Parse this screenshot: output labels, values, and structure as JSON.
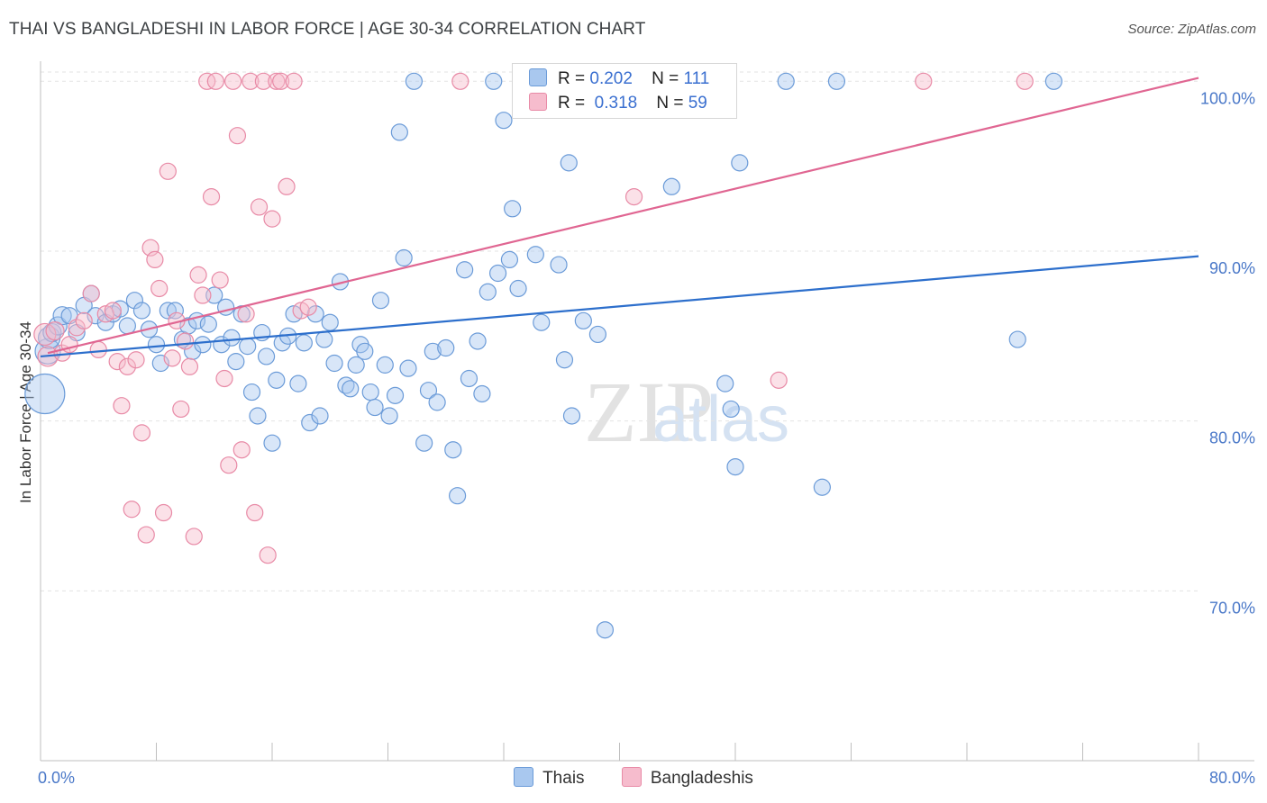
{
  "header": {
    "title": "THAI VS BANGLADESHI IN LABOR FORCE | AGE 30-34 CORRELATION CHART",
    "source": "Source: ZipAtlas.com"
  },
  "watermark": {
    "part1": "ZIP",
    "part2": "atlas"
  },
  "legend": {
    "r_label": "R =",
    "n_label": "N =",
    "rows": [
      {
        "r": "0.202",
        "n": "111",
        "color": "#a9c8ef",
        "stroke": "#6b9bd8"
      },
      {
        "r": "0.318",
        "n": "59",
        "color": "#f6bccd",
        "stroke": "#e88aa6"
      }
    ]
  },
  "chart_data": {
    "type": "scatter",
    "title": "THAI VS BANGLADESHI IN LABOR FORCE | AGE 30-34 CORRELATION CHART",
    "xlabel": "",
    "ylabel": "In Labor Force | Age 30-34",
    "xlim": [
      0,
      80
    ],
    "ylim": [
      60,
      101.5
    ],
    "x_ticks": [
      "0.0%",
      "80.0%"
    ],
    "y_ticks": [
      {
        "value": 70,
        "label": "70.0%"
      },
      {
        "value": 80,
        "label": "80.0%"
      },
      {
        "value": 90,
        "label": "90.0%"
      },
      {
        "value": 100,
        "label": "100.0%"
      }
    ],
    "grid": true,
    "legend_position": "bottom",
    "series": [
      {
        "name": "Thais",
        "color": "#6b9bd8",
        "fill": "#a9c8ef",
        "trend": {
          "x": [
            0,
            80
          ],
          "y": [
            83.8,
            89.7
          ],
          "color": "#2d6fcc"
        },
        "points": [
          [
            0.3,
            81.6,
            22
          ],
          [
            0.5,
            84.1,
            14
          ],
          [
            0.6,
            84.9,
            12
          ],
          [
            0.8,
            85.2,
            10
          ],
          [
            1.2,
            85.6,
            10
          ],
          [
            1.5,
            86.2,
            10
          ],
          [
            2.0,
            86.2,
            9
          ],
          [
            2.5,
            85.2,
            9
          ],
          [
            3.0,
            86.8,
            9
          ],
          [
            3.5,
            87.5,
            9
          ],
          [
            3.8,
            86.2,
            9
          ],
          [
            4.5,
            85.8,
            9
          ],
          [
            5.0,
            86.3,
            9
          ],
          [
            5.5,
            86.6,
            9
          ],
          [
            6.0,
            85.6,
            9
          ],
          [
            6.5,
            87.1,
            9
          ],
          [
            7.0,
            86.5,
            9
          ],
          [
            7.5,
            85.4,
            9
          ],
          [
            8.0,
            84.5,
            9
          ],
          [
            8.3,
            83.4,
            9
          ],
          [
            8.8,
            86.5,
            9
          ],
          [
            9.3,
            86.5,
            9
          ],
          [
            9.8,
            84.8,
            9
          ],
          [
            10.2,
            85.6,
            9
          ],
          [
            10.5,
            84.1,
            9
          ],
          [
            10.8,
            85.9,
            9
          ],
          [
            11.2,
            84.5,
            9
          ],
          [
            11.6,
            85.7,
            9
          ],
          [
            12.0,
            87.4,
            9
          ],
          [
            12.5,
            84.5,
            9
          ],
          [
            12.8,
            86.7,
            9
          ],
          [
            13.2,
            84.9,
            9
          ],
          [
            13.5,
            83.5,
            9
          ],
          [
            13.9,
            86.3,
            9
          ],
          [
            14.3,
            84.4,
            9
          ],
          [
            14.6,
            81.7,
            9
          ],
          [
            15.0,
            80.3,
            9
          ],
          [
            15.3,
            85.2,
            9
          ],
          [
            15.6,
            83.8,
            9
          ],
          [
            16.0,
            78.7,
            9
          ],
          [
            16.3,
            82.4,
            9
          ],
          [
            16.7,
            84.6,
            9
          ],
          [
            17.1,
            85.0,
            9
          ],
          [
            17.5,
            86.3,
            9
          ],
          [
            17.8,
            82.2,
            9
          ],
          [
            18.2,
            84.6,
            9
          ],
          [
            18.6,
            79.9,
            9
          ],
          [
            19.0,
            86.3,
            9
          ],
          [
            19.3,
            80.3,
            9
          ],
          [
            19.6,
            84.8,
            9
          ],
          [
            20.0,
            85.8,
            9
          ],
          [
            20.3,
            83.4,
            9
          ],
          [
            20.7,
            88.2,
            9
          ],
          [
            21.1,
            82.1,
            9
          ],
          [
            21.4,
            81.9,
            9
          ],
          [
            21.8,
            83.3,
            9
          ],
          [
            22.1,
            84.5,
            9
          ],
          [
            22.4,
            84.1,
            9
          ],
          [
            22.8,
            81.7,
            9
          ],
          [
            23.1,
            80.8,
            9
          ],
          [
            23.5,
            87.1,
            9
          ],
          [
            23.8,
            83.3,
            9
          ],
          [
            24.1,
            80.3,
            9
          ],
          [
            24.5,
            81.5,
            9
          ],
          [
            24.8,
            97.0,
            9
          ],
          [
            25.1,
            89.6,
            9
          ],
          [
            25.4,
            83.1,
            9
          ],
          [
            25.8,
            100.0,
            9
          ],
          [
            26.5,
            78.7,
            9
          ],
          [
            26.8,
            81.8,
            9
          ],
          [
            27.1,
            84.1,
            9
          ],
          [
            27.4,
            81.1,
            9
          ],
          [
            28.0,
            84.3,
            9
          ],
          [
            28.5,
            78.3,
            9
          ],
          [
            28.8,
            75.6,
            9
          ],
          [
            29.3,
            88.9,
            9
          ],
          [
            29.6,
            82.5,
            9
          ],
          [
            30.2,
            84.7,
            9
          ],
          [
            30.5,
            81.6,
            9
          ],
          [
            30.9,
            87.6,
            9
          ],
          [
            31.3,
            100.0,
            9
          ],
          [
            31.6,
            88.7,
            9
          ],
          [
            32.0,
            97.7,
            9
          ],
          [
            32.4,
            89.5,
            9
          ],
          [
            32.6,
            92.5,
            9
          ],
          [
            33.0,
            87.8,
            9
          ],
          [
            34.2,
            89.8,
            9
          ],
          [
            34.6,
            85.8,
            9
          ],
          [
            35.8,
            89.2,
            9
          ],
          [
            36.2,
            83.6,
            9
          ],
          [
            36.5,
            95.2,
            9
          ],
          [
            36.7,
            80.3,
            9
          ],
          [
            37.5,
            85.9,
            9
          ],
          [
            38.5,
            85.1,
            9
          ],
          [
            39.0,
            67.7,
            9
          ],
          [
            41.2,
            100.0,
            9
          ],
          [
            43.6,
            93.8,
            9
          ],
          [
            47.3,
            82.2,
            9
          ],
          [
            47.7,
            80.7,
            9
          ],
          [
            48.0,
            77.3,
            9
          ],
          [
            48.3,
            95.2,
            9
          ],
          [
            51.5,
            100.0,
            9
          ],
          [
            54.0,
            76.1,
            9
          ],
          [
            55.0,
            100.0,
            9
          ],
          [
            67.5,
            84.8,
            9
          ],
          [
            70.0,
            100.0,
            9
          ]
        ]
      },
      {
        "name": "Bangladeshis",
        "color": "#e88aa6",
        "fill": "#f6bccd",
        "trend": {
          "x": [
            0.5,
            80
          ],
          "y": [
            84.0,
            100.2
          ],
          "color": "#e06692"
        },
        "points": [
          [
            0.3,
            85.1,
            12
          ],
          [
            0.5,
            83.8,
            11
          ],
          [
            1.0,
            85.3,
            10
          ],
          [
            1.5,
            84.0,
            9
          ],
          [
            2.0,
            84.5,
            9
          ],
          [
            2.5,
            85.5,
            9
          ],
          [
            3.0,
            85.9,
            9
          ],
          [
            3.5,
            87.5,
            9
          ],
          [
            4.0,
            84.2,
            9
          ],
          [
            4.5,
            86.3,
            9
          ],
          [
            5.0,
            86.5,
            9
          ],
          [
            5.3,
            83.5,
            9
          ],
          [
            5.6,
            80.9,
            9
          ],
          [
            6.0,
            83.2,
            9
          ],
          [
            6.3,
            74.8,
            9
          ],
          [
            6.6,
            83.6,
            9
          ],
          [
            7.0,
            79.3,
            9
          ],
          [
            7.3,
            73.3,
            9
          ],
          [
            7.6,
            90.2,
            9
          ],
          [
            7.9,
            89.5,
            9
          ],
          [
            8.2,
            87.8,
            9
          ],
          [
            8.5,
            74.6,
            9
          ],
          [
            8.8,
            94.7,
            9
          ],
          [
            9.1,
            83.7,
            9
          ],
          [
            9.4,
            85.9,
            9
          ],
          [
            9.7,
            80.7,
            9
          ],
          [
            10.0,
            84.7,
            9
          ],
          [
            10.3,
            83.2,
            9
          ],
          [
            10.6,
            73.2,
            9
          ],
          [
            10.9,
            88.6,
            9
          ],
          [
            11.2,
            87.4,
            9
          ],
          [
            11.5,
            100.0,
            9
          ],
          [
            11.8,
            93.2,
            9
          ],
          [
            12.1,
            100.0,
            9
          ],
          [
            12.4,
            88.3,
            9
          ],
          [
            12.7,
            82.5,
            9
          ],
          [
            13.0,
            77.4,
            9
          ],
          [
            13.3,
            100.0,
            9
          ],
          [
            13.6,
            96.8,
            9
          ],
          [
            13.9,
            78.3,
            9
          ],
          [
            14.2,
            86.3,
            9
          ],
          [
            14.5,
            100.0,
            9
          ],
          [
            14.8,
            74.6,
            9
          ],
          [
            15.1,
            92.6,
            9
          ],
          [
            15.4,
            100.0,
            9
          ],
          [
            15.7,
            72.1,
            9
          ],
          [
            16.0,
            91.9,
            9
          ],
          [
            16.3,
            100.0,
            9
          ],
          [
            16.6,
            100.0,
            9
          ],
          [
            17.0,
            93.8,
            9
          ],
          [
            17.5,
            100.0,
            9
          ],
          [
            18.0,
            86.5,
            9
          ],
          [
            18.5,
            86.7,
            9
          ],
          [
            29.0,
            100.0,
            9
          ],
          [
            33.5,
            100.0,
            9
          ],
          [
            41.0,
            93.2,
            9
          ],
          [
            51.0,
            82.4,
            9
          ],
          [
            61.0,
            100.0,
            9
          ],
          [
            68.0,
            100.0,
            9
          ]
        ]
      }
    ]
  }
}
